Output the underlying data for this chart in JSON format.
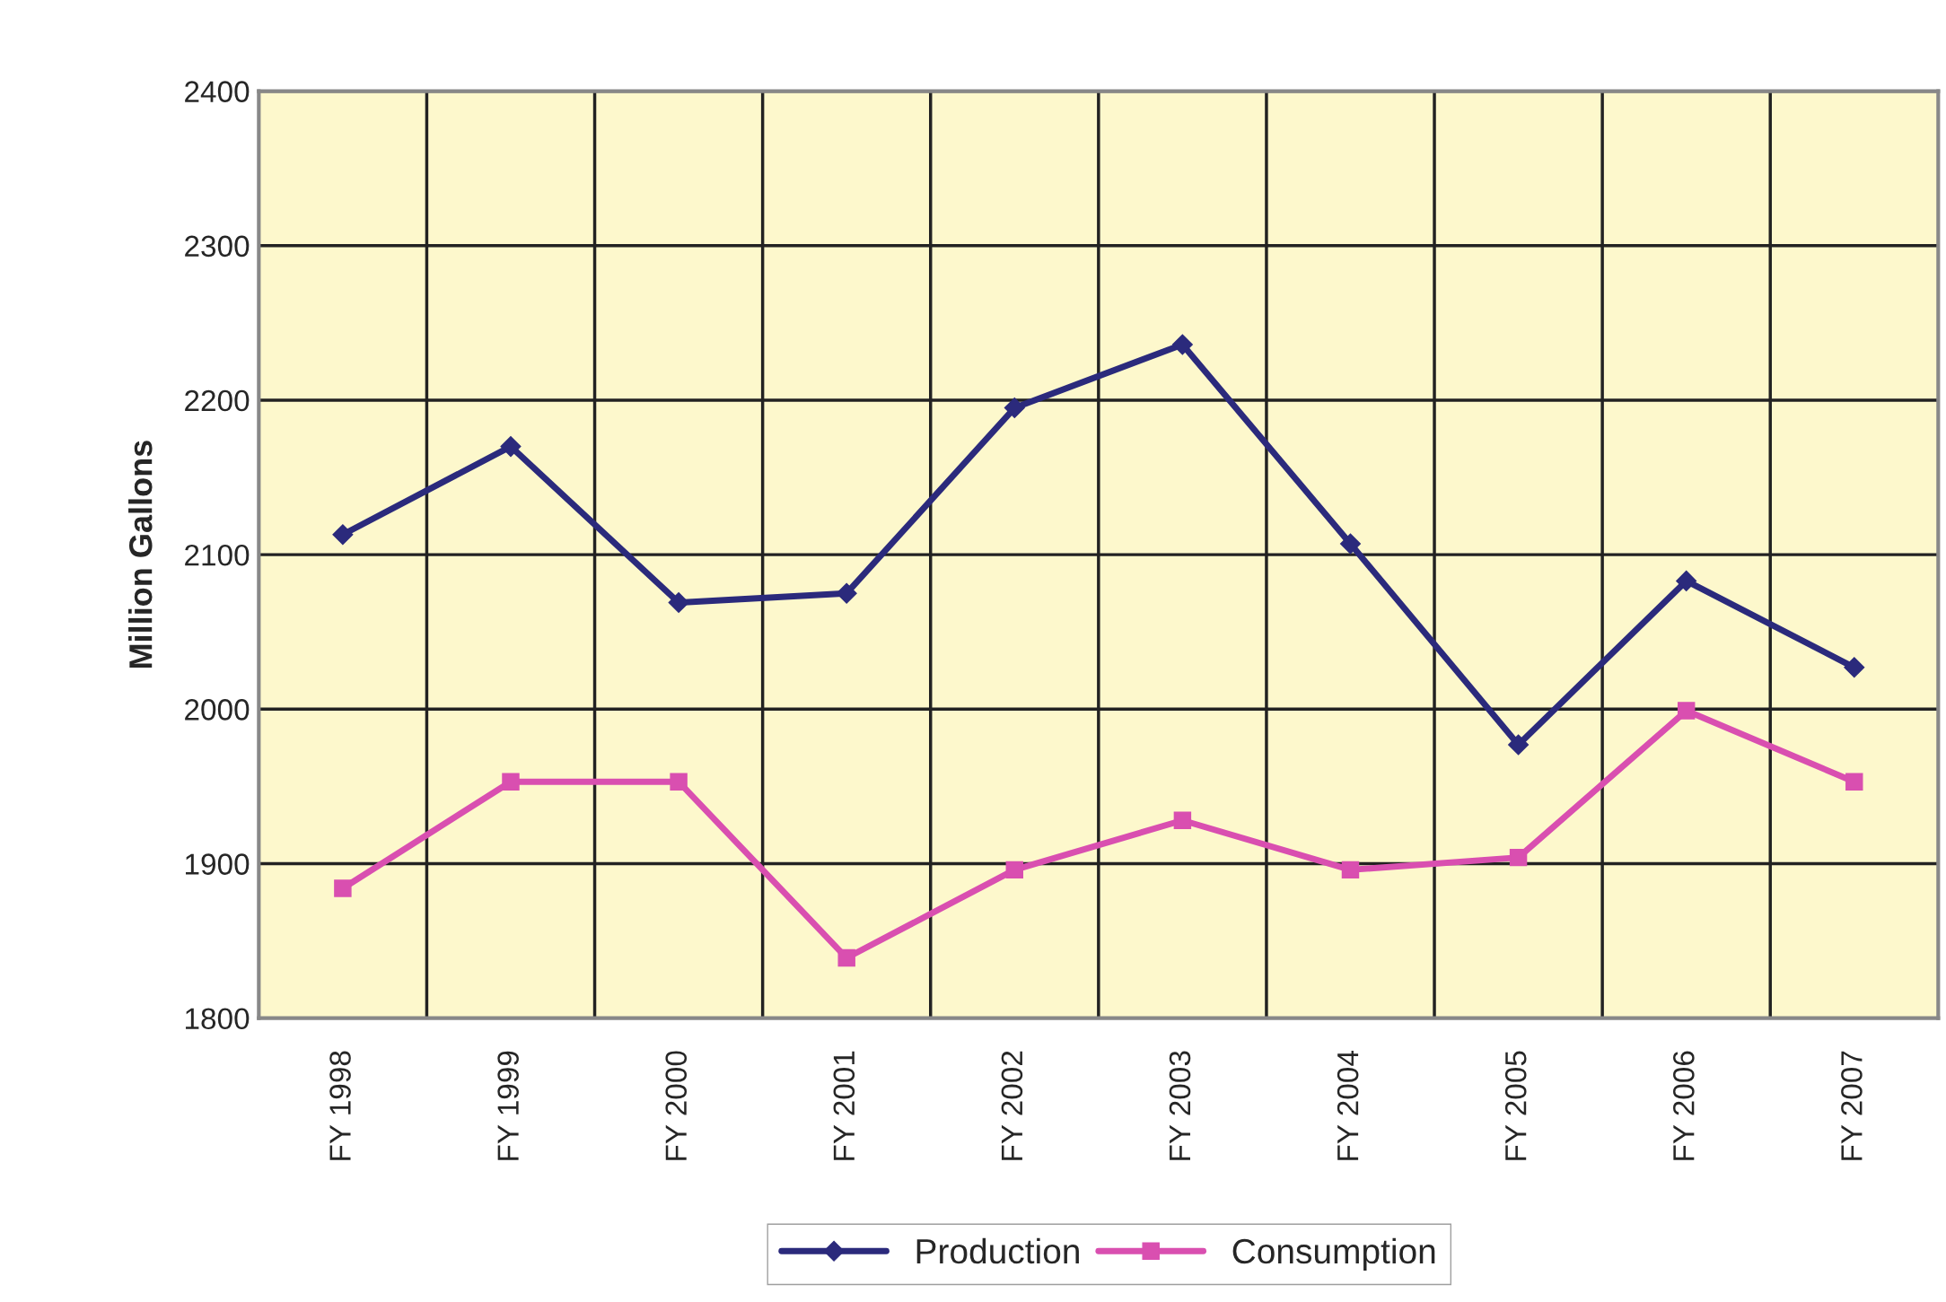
{
  "chart_data": {
    "type": "line",
    "ylabel": "Million Gallons",
    "categories": [
      "FY 1998",
      "FY 1999",
      "FY 2000",
      "FY 2001",
      "FY 2002",
      "FY 2003",
      "FY 2004",
      "FY 2005",
      "FY 2006",
      "FY 2007"
    ],
    "series": [
      {
        "name": "Production",
        "color": "#2b2a7c",
        "marker": "diamond",
        "values": [
          2113,
          2170,
          2069,
          2075,
          2195,
          2236,
          2107,
          1977,
          2083,
          2027
        ]
      },
      {
        "name": "Consumption",
        "color": "#d94fb0",
        "marker": "square",
        "values": [
          1884,
          1953,
          1953,
          1839,
          1896,
          1928,
          1896,
          1904,
          1999,
          1953
        ]
      }
    ],
    "ylim": [
      1800,
      2400
    ],
    "yticks": [
      1800,
      1900,
      2000,
      2100,
      2200,
      2300,
      2400
    ],
    "grid": true,
    "legend": "bottom",
    "line_style": "solid"
  }
}
